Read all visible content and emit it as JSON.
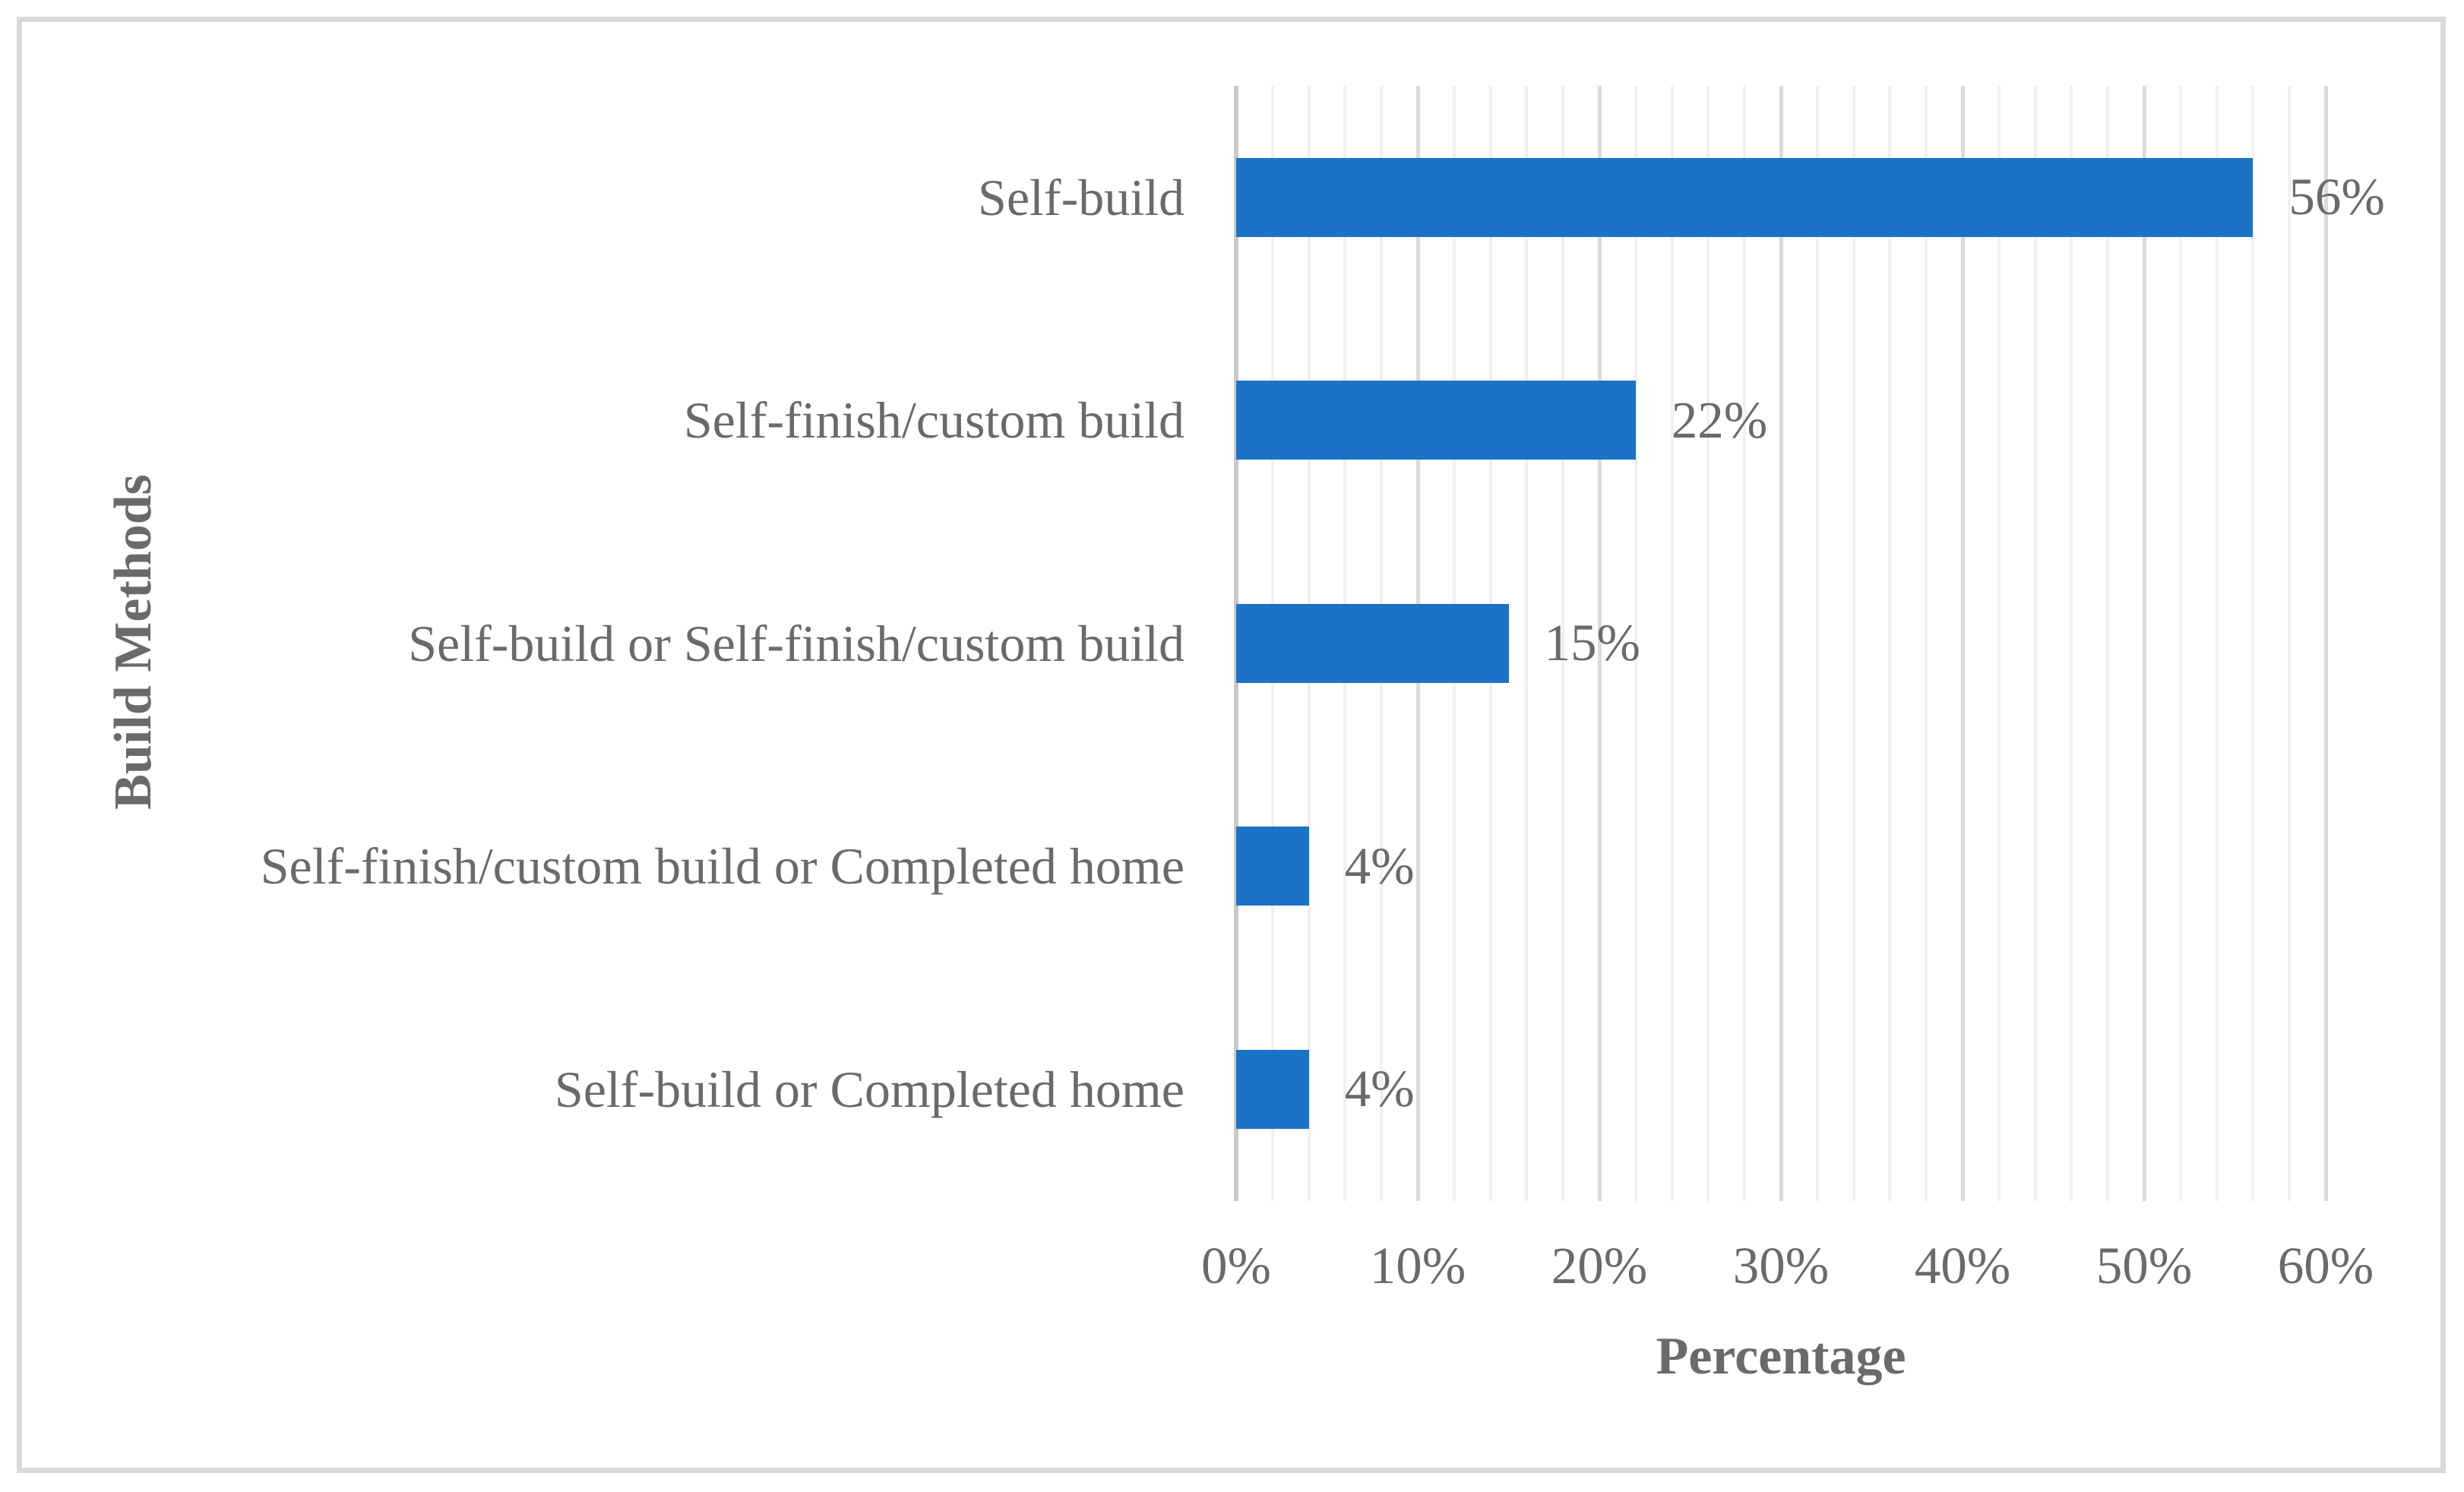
{
  "chart_data": {
    "type": "bar",
    "orientation": "horizontal",
    "title": "",
    "xlabel": "Percentage",
    "ylabel": "Build Methods",
    "categories": [
      "Self-build",
      "Self-finish/custom build",
      "Self-build or Self-finish/custom build",
      "Self-finish/custom build or Completed home",
      "Self-build or Completed home"
    ],
    "values": [
      56,
      22,
      15,
      4,
      4
    ],
    "value_labels": [
      "56%",
      "22%",
      "15%",
      "4%",
      "4%"
    ],
    "xlim": [
      0,
      60
    ],
    "x_major_tick_step": 10,
    "x_minor_tick_step": 2,
    "x_tick_labels": [
      "0%",
      "10%",
      "20%",
      "30%",
      "40%",
      "50%",
      "60%"
    ],
    "grid": "vertical, minor every 2%, major every 10%",
    "legend": "none",
    "colors": {
      "bar": "#1B73C8",
      "text": "#6A6A6A",
      "gridline_minor": "#F1F1F1",
      "gridline_major": "#DBDBDB",
      "axis_line": "#C9C9C9",
      "figure_border": "#D9D9D9",
      "background": "#FFFFFF"
    }
  }
}
